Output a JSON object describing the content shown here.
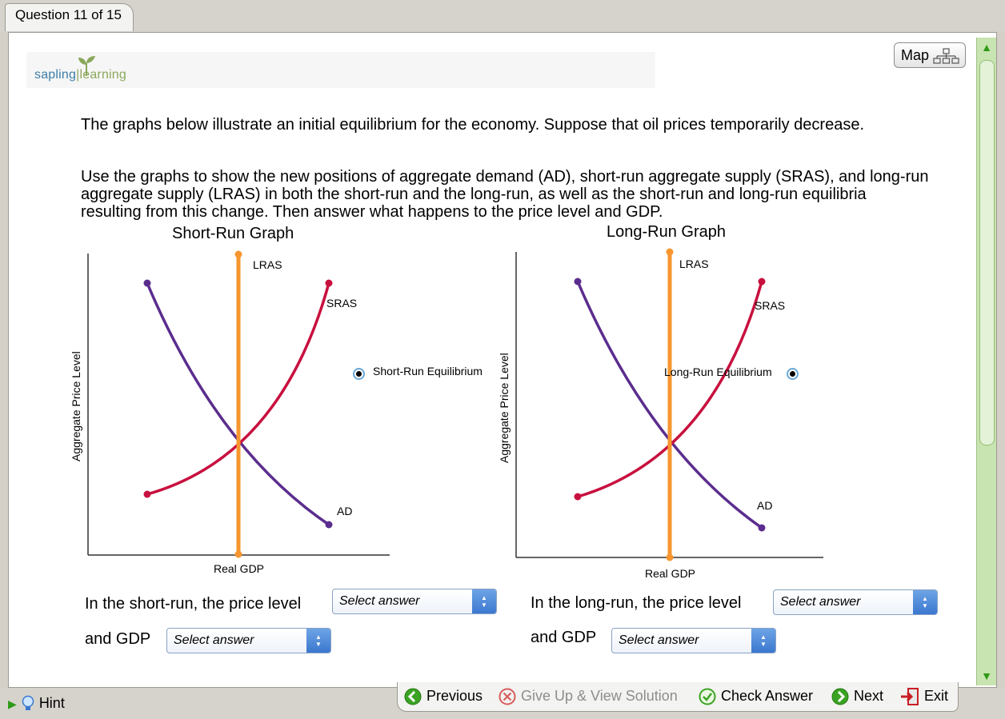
{
  "tab": {
    "question_label": "Question 11 of 15"
  },
  "logo": {
    "part1": "sapling",
    "part2": "learning"
  },
  "map_button": {
    "label": "Map"
  },
  "question": {
    "paragraph1": "The graphs below illustrate an initial equilibrium for the economy. Suppose that oil prices temporarily decrease.",
    "paragraph2": "Use the graphs to show the new positions of aggregate demand (AD), short-run aggregate supply (SRAS), and long-run aggregate supply (LRAS) in both the short-run and the long-run, as well as the short-run and long-run equilibria resulting from this change. Then answer what happens to the price level and GDP."
  },
  "chart_data": [
    {
      "type": "line",
      "title": "Short-Run Graph",
      "xlabel": "Real GDP",
      "ylabel": "Aggregate Price Level",
      "series": [
        {
          "name": "LRAS",
          "color": "#f7962f"
        },
        {
          "name": "SRAS",
          "color": "#c8103e"
        },
        {
          "name": "AD",
          "color": "#5b2d8e"
        }
      ],
      "equilibrium_tool": {
        "label": "Short-Run Equilibrium"
      }
    },
    {
      "type": "line",
      "title": "Long-Run Graph",
      "xlabel": "Real GDP",
      "ylabel": "Aggregate Price Level",
      "series": [
        {
          "name": "LRAS",
          "color": "#f7962f"
        },
        {
          "name": "SRAS",
          "color": "#c8103e"
        },
        {
          "name": "AD",
          "color": "#5b2d8e"
        }
      ],
      "equilibrium_tool": {
        "label": "Long-Run Equilibrium"
      }
    }
  ],
  "answers": {
    "sr_price_text": "In the short-run, the price level",
    "sr_gdp_text": "and GDP",
    "lr_price_text": "In the long-run, the price level",
    "lr_gdp_text": "and GDP",
    "select_placeholder": "Select answer"
  },
  "bottom": {
    "hint": "Hint",
    "previous": "Previous",
    "give_up": "Give Up & View Solution",
    "check": "Check Answer",
    "next": "Next",
    "exit": "Exit"
  },
  "colors": {
    "accent_green": "#2f9a18",
    "select_blue": "#3b78cf"
  }
}
